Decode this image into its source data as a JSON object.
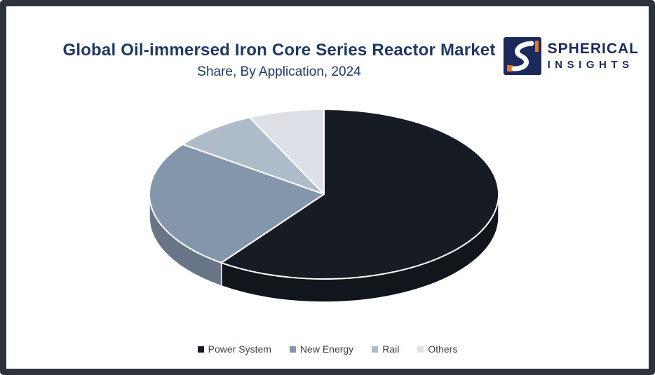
{
  "frame": {
    "border_color": "#2e333b",
    "background": "#ffffff"
  },
  "header": {
    "title": "Global Oil-immersed Iron Core Series Reactor Market",
    "subtitle": "Share, By Application, 2024",
    "title_color": "#1f3864"
  },
  "logo": {
    "line1": "SPHERICAL",
    "line2": "INSIGHTS",
    "navy": "#1b2a5b",
    "orange": "#e87722"
  },
  "chart_data": {
    "type": "pie",
    "style": "3d",
    "title": "Global Oil-immersed Iron Core Series Reactor Market Share, By Application, 2024",
    "labels": [
      "Power System",
      "New Energy",
      "Rail",
      "Others"
    ],
    "values": [
      60,
      25,
      8,
      7
    ],
    "colors": [
      "#161b24",
      "#8496ac",
      "#aebcca",
      "#dce0e6"
    ],
    "legend_position": "bottom",
    "slice_border_color": "#ffffff"
  }
}
